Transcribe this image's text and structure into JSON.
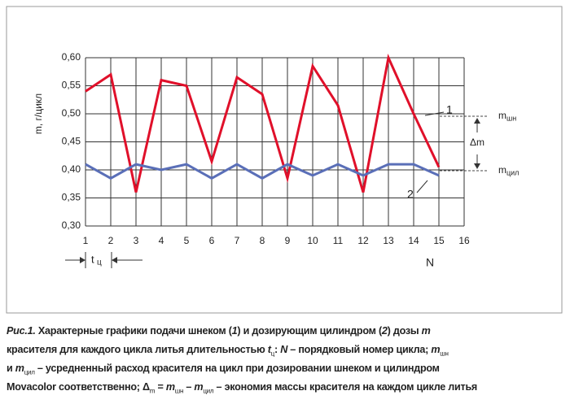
{
  "chart_data": {
    "type": "line",
    "y_label": "m, г/цикл",
    "x": [
      1,
      2,
      3,
      4,
      5,
      6,
      7,
      8,
      9,
      10,
      11,
      12,
      13,
      14,
      15
    ],
    "series": [
      {
        "name": "1",
        "color": "#e0102a",
        "values": [
          0.54,
          0.57,
          0.36,
          0.56,
          0.55,
          0.415,
          0.565,
          0.535,
          0.385,
          0.585,
          0.515,
          0.36,
          0.6,
          0.5,
          0.405
        ]
      },
      {
        "name": "2",
        "color": "#5a6fb8",
        "values": [
          0.41,
          0.385,
          0.41,
          0.4,
          0.41,
          0.385,
          0.41,
          0.385,
          0.41,
          0.39,
          0.41,
          0.39,
          0.41,
          0.41,
          0.39
        ]
      }
    ],
    "xlim": [
      1,
      16
    ],
    "xticks": [
      1,
      2,
      3,
      4,
      5,
      6,
      7,
      8,
      9,
      10,
      11,
      12,
      13,
      14,
      15,
      16
    ],
    "ylim": [
      0.3,
      0.6
    ],
    "yticks": [
      {
        "value": 0.3,
        "label": "0,30"
      },
      {
        "value": 0.35,
        "label": "0,35"
      },
      {
        "value": 0.4,
        "label": "0,40"
      },
      {
        "value": 0.45,
        "label": "0,45"
      },
      {
        "value": 0.5,
        "label": "0,50"
      },
      {
        "value": 0.55,
        "label": "0,55"
      },
      {
        "value": 0.6,
        "label": "0,60"
      }
    ],
    "grid": true,
    "labels": {
      "m_top": "m",
      "m_top_sub": "шн",
      "delta": "Δm",
      "m_bot": "m",
      "m_bot_sub": "цил",
      "x_label": "N",
      "period": "t",
      "period_sub": "ц"
    }
  },
  "caption": {
    "lines": [
      [
        "Рис.1.",
        " Характерные графики подачи шнеком (",
        "1",
        ") и дозирующим цилиндром (",
        "2",
        ") дозы ",
        "m"
      ],
      [
        "красителя для каждого цикла литья длительностью ",
        "t",
        "ц",
        ": ",
        "N",
        " – порядковый номер цикла; ",
        "m",
        "шн"
      ],
      [
        "и ",
        "m",
        "цил",
        " – усредненный расход красителя на цикл при дозировании шнеком и цилиндром"
      ],
      [
        "Movacolor соответственно; Δ",
        "m",
        " = ",
        "m",
        "шн",
        " – ",
        "m",
        "цил",
        " – экономия массы красителя на каждом цикле литья"
      ]
    ]
  }
}
